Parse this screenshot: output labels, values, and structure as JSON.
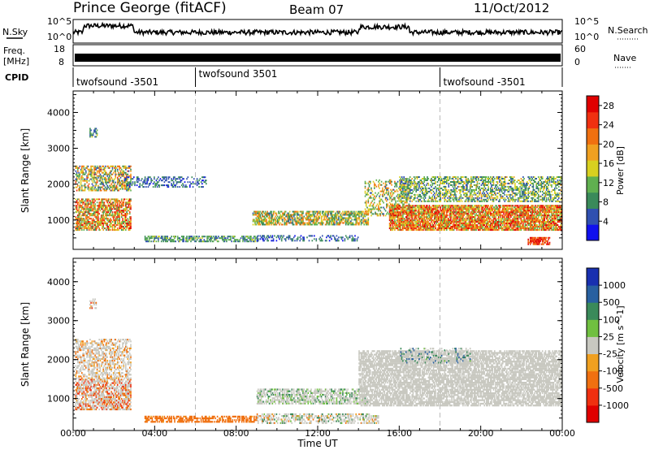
{
  "header": {
    "station": "Prince George (fitACF)",
    "beam": "Beam 07",
    "date": "11/Oct/2012"
  },
  "nsky_panel": {
    "left_label": "N.Sky",
    "right_label": "N.Search",
    "tick_top": "10^5",
    "tick_bottom": "10^0"
  },
  "freq_panel": {
    "left_label_line1": "Freq.",
    "left_label_line2": "[MHz]",
    "right_label": "Nave",
    "left_ticks": [
      "18",
      "8"
    ],
    "right_ticks": [
      "60",
      "0"
    ]
  },
  "cpid_panel": {
    "label": "CPID",
    "segments": [
      {
        "name": "twofsound -3501",
        "start_hour": 0
      },
      {
        "name": "twofsound 3501",
        "start_hour": 6
      },
      {
        "name": "twofsound -3501",
        "start_hour": 18
      }
    ]
  },
  "colors": {
    "power": [
      "#1010ee",
      "#3050b0",
      "#3a8a5a",
      "#60b050",
      "#d8d020",
      "#f0a020",
      "#f07010",
      "#f03010",
      "#e00000"
    ],
    "velocity": [
      "#1830b0",
      "#2860a0",
      "#3a8a5a",
      "#70c040",
      "#c8c8c0",
      "#f0a020",
      "#f07010",
      "#f03010",
      "#e00000"
    ]
  },
  "chart_data": [
    {
      "type": "heatmap",
      "title": "",
      "xlabel": "Time UT",
      "ylabel": "Slant Range [km]",
      "x_ticks": [
        "00:00",
        "04:00",
        "08:00",
        "12:00",
        "16:00",
        "20:00",
        "00:00"
      ],
      "xlim_hours": [
        0,
        24
      ],
      "ylim_km": [
        180,
        4600
      ],
      "y_ticks": [
        1000,
        2000,
        3000,
        4000
      ],
      "colorbar": {
        "label": "Power [dB]",
        "ticks": [
          "4",
          "8",
          "12",
          "16",
          "20",
          "24",
          "28"
        ],
        "range_db": [
          0,
          30
        ]
      },
      "scatter_regions": [
        {
          "t0": 0.1,
          "t1": 2.8,
          "r0": 700,
          "r1": 1600,
          "density": 0.7,
          "level": [
            8,
            28
          ]
        },
        {
          "t0": 0.1,
          "t1": 2.8,
          "r0": 1800,
          "r1": 2500,
          "density": 0.55,
          "level": [
            4,
            24
          ]
        },
        {
          "t0": 0.8,
          "t1": 1.2,
          "r0": 3300,
          "r1": 3550,
          "density": 0.5,
          "level": [
            4,
            16
          ]
        },
        {
          "t0": 2.5,
          "t1": 6.5,
          "r0": 1900,
          "r1": 2200,
          "density": 0.35,
          "level": [
            2,
            10
          ]
        },
        {
          "t0": 3.5,
          "t1": 9.0,
          "r0": 380,
          "r1": 550,
          "density": 0.6,
          "level": [
            4,
            14
          ]
        },
        {
          "t0": 8.8,
          "t1": 14.5,
          "r0": 850,
          "r1": 1250,
          "density": 0.65,
          "level": [
            6,
            22
          ]
        },
        {
          "t0": 9.0,
          "t1": 14.0,
          "r0": 400,
          "r1": 580,
          "density": 0.4,
          "level": [
            2,
            10
          ]
        },
        {
          "t0": 14.3,
          "t1": 16.5,
          "r0": 1100,
          "r1": 2100,
          "density": 0.35,
          "level": [
            6,
            22
          ]
        },
        {
          "t0": 15.5,
          "t1": 24.0,
          "r0": 700,
          "r1": 1400,
          "density": 0.85,
          "level": [
            10,
            30
          ]
        },
        {
          "t0": 16.0,
          "t1": 24.0,
          "r0": 1500,
          "r1": 2200,
          "density": 0.5,
          "level": [
            4,
            18
          ]
        },
        {
          "t0": 22.3,
          "t1": 23.4,
          "r0": 300,
          "r1": 500,
          "density": 0.8,
          "level": [
            20,
            30
          ]
        }
      ]
    },
    {
      "type": "heatmap",
      "title": "",
      "xlabel": "Time UT",
      "ylabel": "Slant Range [km]",
      "x_ticks": [
        "00:00",
        "04:00",
        "08:00",
        "12:00",
        "16:00",
        "20:00",
        "00:00"
      ],
      "xlim_hours": [
        0,
        24
      ],
      "ylim_km": [
        180,
        4600
      ],
      "y_ticks": [
        1000,
        2000,
        3000,
        4000
      ],
      "colorbar": {
        "label": "Velocity [m s^-1]",
        "ticks": [
          "1000",
          "500",
          "100",
          "25",
          "-25",
          "-100",
          "-500",
          "-1000"
        ]
      },
      "scatter_regions": [
        {
          "t0": 0.1,
          "t1": 2.8,
          "r0": 700,
          "r1": 1500,
          "density": 0.7,
          "vel": [
            -500,
            25
          ]
        },
        {
          "t0": 0.1,
          "t1": 2.8,
          "r0": 1500,
          "r1": 2500,
          "density": 0.5,
          "vel": [
            -100,
            25
          ]
        },
        {
          "t0": 0.8,
          "t1": 1.2,
          "r0": 3300,
          "r1": 3550,
          "density": 0.5,
          "vel": [
            -500,
            25
          ]
        },
        {
          "t0": 3.5,
          "t1": 9.0,
          "r0": 380,
          "r1": 560,
          "density": 0.6,
          "vel": [
            -300,
            -50
          ]
        },
        {
          "t0": 9.0,
          "t1": 14.5,
          "r0": 850,
          "r1": 1250,
          "density": 0.6,
          "vel": [
            -25,
            100
          ]
        },
        {
          "t0": 9.0,
          "t1": 15.0,
          "r0": 350,
          "r1": 600,
          "density": 0.45,
          "vel": [
            -100,
            150
          ]
        },
        {
          "t0": 14.0,
          "t1": 24.0,
          "r0": 800,
          "r1": 2200,
          "density": 0.75,
          "vel": [
            -25,
            25
          ]
        },
        {
          "t0": 16.0,
          "t1": 19.5,
          "r0": 1900,
          "r1": 2300,
          "density": 0.35,
          "vel": [
            -25,
            400
          ]
        }
      ]
    }
  ]
}
